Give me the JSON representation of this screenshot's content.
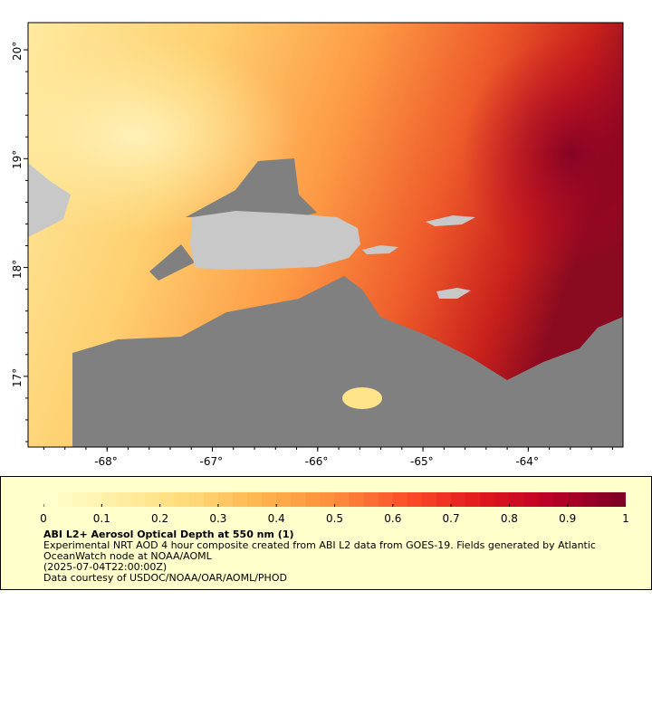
{
  "map": {
    "lon_ticks": [
      {
        "value": -68,
        "label": "-68°"
      },
      {
        "value": -67,
        "label": "-67°"
      },
      {
        "value": -66,
        "label": "-66°"
      },
      {
        "value": -65,
        "label": "-65°"
      },
      {
        "value": -64,
        "label": "-64°"
      }
    ],
    "lat_ticks": [
      {
        "value": 20,
        "label": "20°"
      },
      {
        "value": 19,
        "label": "19°"
      },
      {
        "value": 18,
        "label": "18°"
      },
      {
        "value": 17,
        "label": "17°"
      }
    ],
    "lon_range": [
      -68.75,
      -63.1
    ],
    "lat_range": [
      16.35,
      20.25
    ],
    "colors": {
      "land": "#c8c8c8",
      "no_data": "#808080"
    }
  },
  "colorbar": {
    "min": 0,
    "max": 1,
    "ticks": [
      "0",
      "0.1",
      "0.2",
      "0.3",
      "0.4",
      "0.5",
      "0.6",
      "0.7",
      "0.8",
      "0.9",
      "1"
    ],
    "colors": [
      "#ffffcc",
      "#ffeda0",
      "#fed976",
      "#feb24c",
      "#fd8d3c",
      "#fc4e2a",
      "#e31a1c",
      "#bd0026",
      "#800026"
    ]
  },
  "legend": {
    "title": "ABI L2+ Aerosol Optical Depth at 550 nm (1)",
    "description": "Experimental NRT AOD 4 hour composite created from ABI L2 data from GOES-19. Fields generated by Atlantic OceanWatch node at NOAA/AOML",
    "date": "(2025-07-04T22:00:00Z)",
    "credit": "Data courtesy of USDOC/NOAA/OAR/AOML/PHOD"
  }
}
